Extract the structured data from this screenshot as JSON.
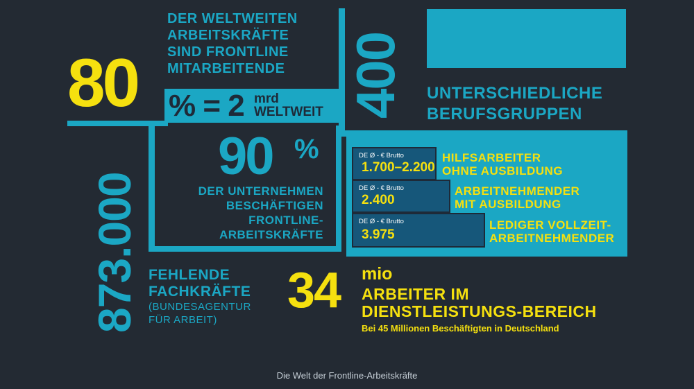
{
  "blocks": {
    "frontline": {
      "value": "80",
      "label_lines": [
        "DER WELTWEITEN",
        "ARBEITSKRÄFTE",
        "SIND FRONTLINE",
        "MITARBEITENDE"
      ],
      "percent_equation": "% = 2",
      "unit_top": "mrd",
      "unit_bottom": "WELTWEIT"
    },
    "professions": {
      "value": "400",
      "label_lines": [
        "UNTERSCHIEDLICHE",
        "BERUFSGRUPPEN"
      ]
    },
    "companies": {
      "value": "90",
      "unit": "%",
      "label_lines": [
        "DER UNTERNEHMEN",
        "BESCHÄFTIGEN",
        "FRONTLINE-",
        "ARBEITSKRÄFTE"
      ]
    },
    "shortage": {
      "value": "873.000",
      "label_lines": [
        "FEHLENDE",
        "FACHKRÄFTE"
      ],
      "source_lines": [
        "(BUNDESAGENTUR",
        "FÜR ARBEIT)"
      ]
    },
    "services": {
      "value": "34",
      "unit": "mio",
      "label_lines": [
        "ARBEITER IM",
        "DIENSTLEISTUNGS-BEREICH"
      ],
      "note": "Bei 45 Millionen Beschäftigten in Deutschland"
    }
  },
  "salaries": [
    {
      "tag": "DE Ø - € Brutto",
      "value": "1.700–2.200",
      "label_lines": [
        "HILFSARBEITER",
        "OHNE AUSBILDUNG"
      ]
    },
    {
      "tag": "DE Ø - € Brutto",
      "value": "2.400",
      "label_lines": [
        "ARBEITNEHMENDER",
        "MIT AUSBILDUNG"
      ]
    },
    {
      "tag": "DE Ø - € Brutto",
      "value": "3.975",
      "label_lines": [
        "LEDIGER VOLLZEIT-",
        "ARBEITNEHMENDER"
      ]
    }
  ],
  "caption": "Die Welt der Frontline-Arbeitskräfte",
  "colors": {
    "background": "#232a33",
    "cyan": "#1ba7c4",
    "yellow": "#f5e00f",
    "navy": "#16577a"
  }
}
